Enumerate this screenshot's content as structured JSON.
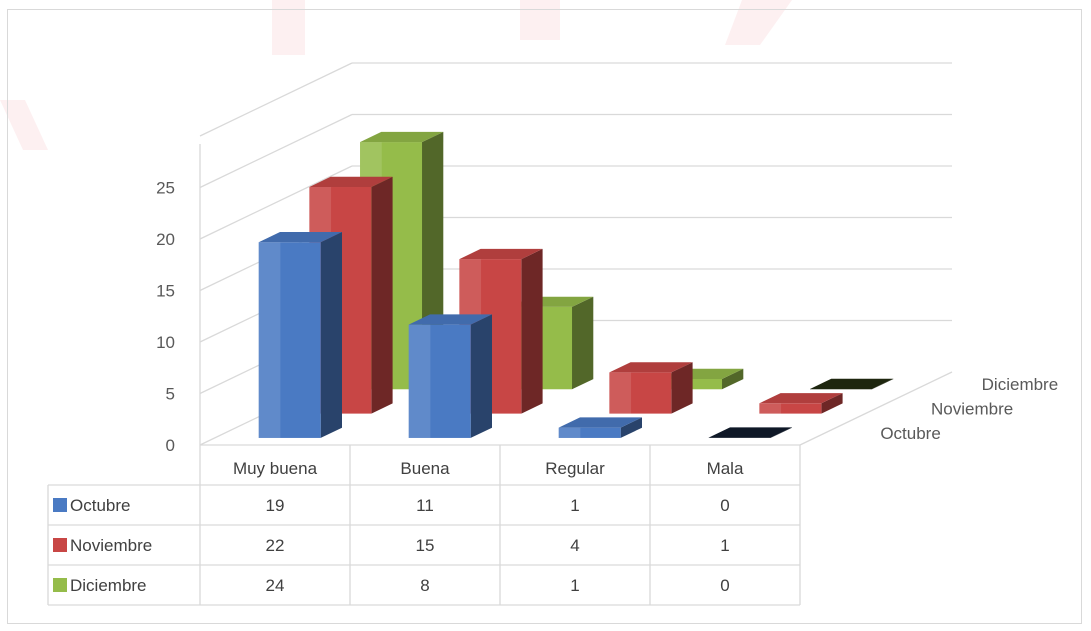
{
  "chart_data": {
    "type": "bar",
    "title": "",
    "xlabel": "",
    "ylabel": "",
    "categories": [
      "Muy buena",
      "Buena",
      "Regular",
      "Mala"
    ],
    "series": [
      {
        "name": "Octubre",
        "values": [
          19,
          11,
          1,
          0
        ],
        "color": "#4a7ac3"
      },
      {
        "name": "Noviembre",
        "values": [
          22,
          15,
          4,
          1
        ],
        "color": "#c84645"
      },
      {
        "name": "Diciembre",
        "values": [
          24,
          8,
          1,
          0
        ],
        "color": "#95bc4a"
      }
    ],
    "yticks": [
      0,
      5,
      10,
      15,
      20,
      25
    ],
    "ylim": [
      0,
      25
    ],
    "grid": true,
    "legend": "data table below plot",
    "data_table": true
  },
  "colors": {
    "frame_border": "#d9d9d9",
    "gridline": "#d9d9d9",
    "text": "#595959",
    "background_decoration": "#e8283a"
  }
}
